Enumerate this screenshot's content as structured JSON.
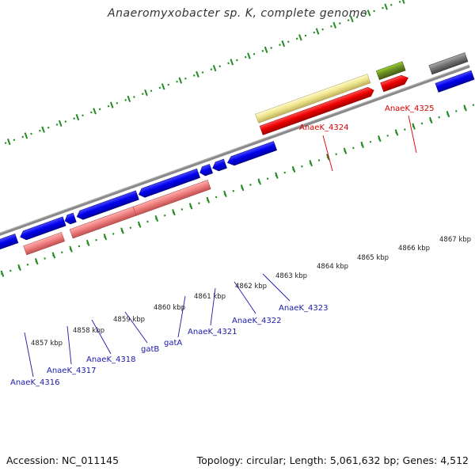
{
  "title": "Anaeromyxobacter sp. K, complete genome",
  "footer": {
    "accession": "Accession: NC_011145",
    "summary": "Topology: circular; Length: 5,061,632 bp; Genes: 4,512"
  },
  "scale_labels": [
    "4857 kbp",
    "4858 kbp",
    "4859 kbp",
    "4860 kbp",
    "4861 kbp",
    "4862 kbp",
    "4863 kbp",
    "4864 kbp",
    "4865 kbp",
    "4866 kbp",
    "4867 kbp"
  ],
  "gene_labels": [
    "AnaeK_4316",
    "AnaeK_4317",
    "AnaeK_4318",
    "gatB",
    "gatA",
    "AnaeK_4321",
    "AnaeK_4322",
    "AnaeK_4323",
    "AnaeK_4324",
    "AnaeK_4325"
  ],
  "colors": {
    "forward_cds": "#0000ee",
    "reverse_cds": "#ee0000",
    "rna_pink": "#f08080",
    "feature_yellow": "#f0e68c",
    "feature_olive": "#6b8e23",
    "backbone": "#888888",
    "tick": "#228b22"
  }
}
